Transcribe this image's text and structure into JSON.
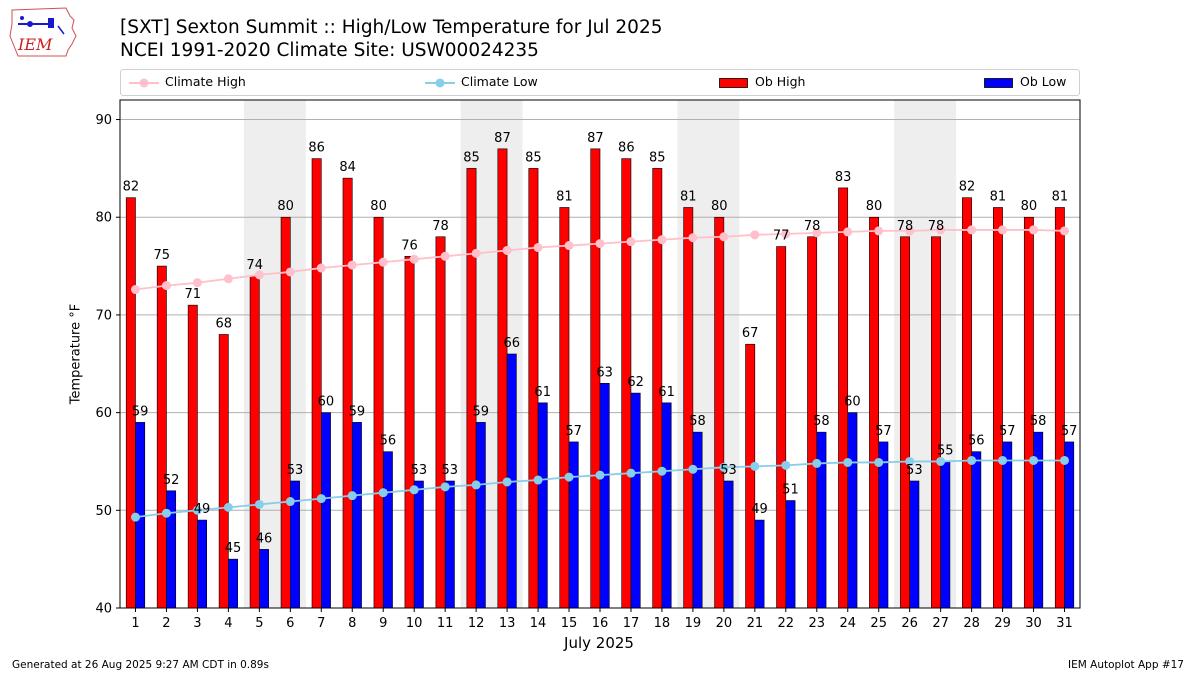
{
  "header": {
    "logo_text": "IEM",
    "title_line1": "[SXT] Sexton Summit :: High/Low Temperature for Jul 2025",
    "title_line2": "NCEI 1991-2020 Climate Site: USW00024235"
  },
  "legend": {
    "climate_high": "Climate High",
    "climate_low": "Climate Low",
    "ob_high": "Ob High",
    "ob_low": "Ob Low"
  },
  "footer": {
    "generated": "Generated at 26 Aug 2025 9:27 AM CDT in 0.89s",
    "app": "IEM Autoplot App #17"
  },
  "colors": {
    "ob_high": "#ff0000",
    "ob_low": "#0000ff",
    "climate_high": "#ffc0cb",
    "climate_low": "#87ceeb",
    "weekend_shade": "#eeeeee",
    "grid": "#b0b0b0"
  },
  "chart_data": {
    "type": "bar",
    "xlabel": "July 2025",
    "ylabel": "Temperature °F",
    "ylim": [
      40,
      92
    ],
    "yticks": [
      40,
      50,
      60,
      70,
      80,
      90
    ],
    "grid": true,
    "legend_position": "top",
    "weekend_spans": [
      [
        5,
        6
      ],
      [
        12,
        13
      ],
      [
        19,
        20
      ],
      [
        26,
        27
      ]
    ],
    "categories": [
      1,
      2,
      3,
      4,
      5,
      6,
      7,
      8,
      9,
      10,
      11,
      12,
      13,
      14,
      15,
      16,
      17,
      18,
      19,
      20,
      21,
      22,
      23,
      24,
      25,
      26,
      27,
      28,
      29,
      30,
      31
    ],
    "series": [
      {
        "name": "Ob High",
        "kind": "bar",
        "values": [
          82,
          75,
          71,
          68,
          74,
          80,
          86,
          84,
          80,
          76,
          78,
          85,
          87,
          85,
          81,
          87,
          86,
          85,
          81,
          80,
          67,
          77,
          78,
          83,
          80,
          78,
          78,
          82,
          81,
          80,
          81
        ]
      },
      {
        "name": "Ob Low",
        "kind": "bar",
        "values": [
          59,
          52,
          49,
          45,
          46,
          53,
          60,
          59,
          56,
          53,
          53,
          59,
          66,
          61,
          57,
          63,
          62,
          61,
          58,
          53,
          49,
          51,
          58,
          60,
          57,
          53,
          55,
          56,
          57,
          58,
          57
        ]
      },
      {
        "name": "Climate High",
        "kind": "line",
        "values": [
          72.6,
          73.0,
          73.3,
          73.7,
          74.1,
          74.4,
          74.8,
          75.1,
          75.4,
          75.7,
          76.0,
          76.3,
          76.6,
          76.9,
          77.1,
          77.3,
          77.5,
          77.7,
          77.9,
          78.0,
          78.2,
          78.3,
          78.4,
          78.5,
          78.6,
          78.6,
          78.7,
          78.7,
          78.7,
          78.7,
          78.6
        ]
      },
      {
        "name": "Climate Low",
        "kind": "line",
        "values": [
          49.3,
          49.7,
          50.0,
          50.3,
          50.6,
          50.9,
          51.2,
          51.5,
          51.8,
          52.1,
          52.4,
          52.6,
          52.9,
          53.1,
          53.4,
          53.6,
          53.8,
          54.0,
          54.2,
          54.4,
          54.5,
          54.6,
          54.8,
          54.9,
          54.9,
          55.0,
          55.0,
          55.1,
          55.1,
          55.1,
          55.1
        ]
      }
    ]
  }
}
